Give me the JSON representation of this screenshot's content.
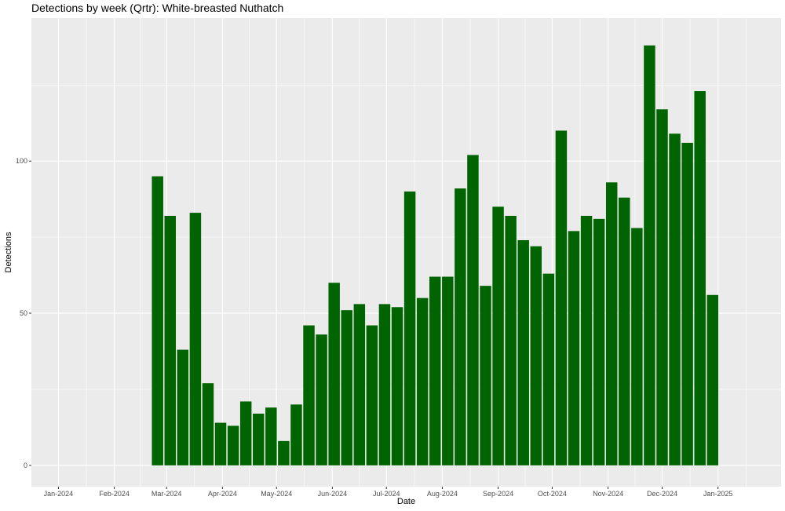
{
  "chart_data": {
    "type": "bar",
    "title": "Detections by week (Qrtr): White-breasted Nuthatch",
    "xlabel": "Date",
    "ylabel": "Detections",
    "bar_color": "#006400",
    "panel_color": "#ebebeb",
    "grid_color": "#ffffff",
    "grid": true,
    "legend": "none",
    "xlim": [
      "2023-12-17",
      "2025-02-05"
    ],
    "ylim": [
      -7,
      147
    ],
    "y_ticks": [
      0,
      50,
      100
    ],
    "x_ticks": [
      {
        "date": "2024-01-01",
        "label": "Jan-2024"
      },
      {
        "date": "2024-02-01",
        "label": "Feb-2024"
      },
      {
        "date": "2024-03-01",
        "label": "Mar-2024"
      },
      {
        "date": "2024-04-01",
        "label": "Apr-2024"
      },
      {
        "date": "2024-05-01",
        "label": "May-2024"
      },
      {
        "date": "2024-06-01",
        "label": "Jun-2024"
      },
      {
        "date": "2024-07-01",
        "label": "Jul-2024"
      },
      {
        "date": "2024-08-01",
        "label": "Aug-2024"
      },
      {
        "date": "2024-09-01",
        "label": "Sep-2024"
      },
      {
        "date": "2024-10-01",
        "label": "Oct-2024"
      },
      {
        "date": "2024-11-01",
        "label": "Nov-2024"
      },
      {
        "date": "2024-12-01",
        "label": "Dec-2024"
      },
      {
        "date": "2025-01-01",
        "label": "Jan-2025"
      }
    ],
    "x": [
      "2024-02-25",
      "2024-03-03",
      "2024-03-10",
      "2024-03-17",
      "2024-03-24",
      "2024-03-31",
      "2024-04-07",
      "2024-04-14",
      "2024-04-21",
      "2024-04-28",
      "2024-05-05",
      "2024-05-12",
      "2024-05-19",
      "2024-05-26",
      "2024-06-02",
      "2024-06-09",
      "2024-06-16",
      "2024-06-23",
      "2024-06-30",
      "2024-07-07",
      "2024-07-14",
      "2024-07-21",
      "2024-07-28",
      "2024-08-04",
      "2024-08-11",
      "2024-08-18",
      "2024-08-25",
      "2024-09-01",
      "2024-09-08",
      "2024-09-15",
      "2024-09-22",
      "2024-09-29",
      "2024-10-06",
      "2024-10-13",
      "2024-10-20",
      "2024-10-27",
      "2024-11-03",
      "2024-11-10",
      "2024-11-17",
      "2024-11-24",
      "2024-12-01",
      "2024-12-08",
      "2024-12-15",
      "2024-12-22",
      "2024-12-29"
    ],
    "values": [
      95,
      82,
      38,
      83,
      27,
      14,
      13,
      21,
      17,
      19,
      8,
      20,
      46,
      43,
      60,
      51,
      53,
      46,
      53,
      52,
      90,
      55,
      62,
      62,
      91,
      102,
      59,
      85,
      82,
      74,
      72,
      63,
      110,
      77,
      82,
      81,
      93,
      88,
      78,
      138,
      117,
      109,
      106,
      123,
      56
    ]
  }
}
